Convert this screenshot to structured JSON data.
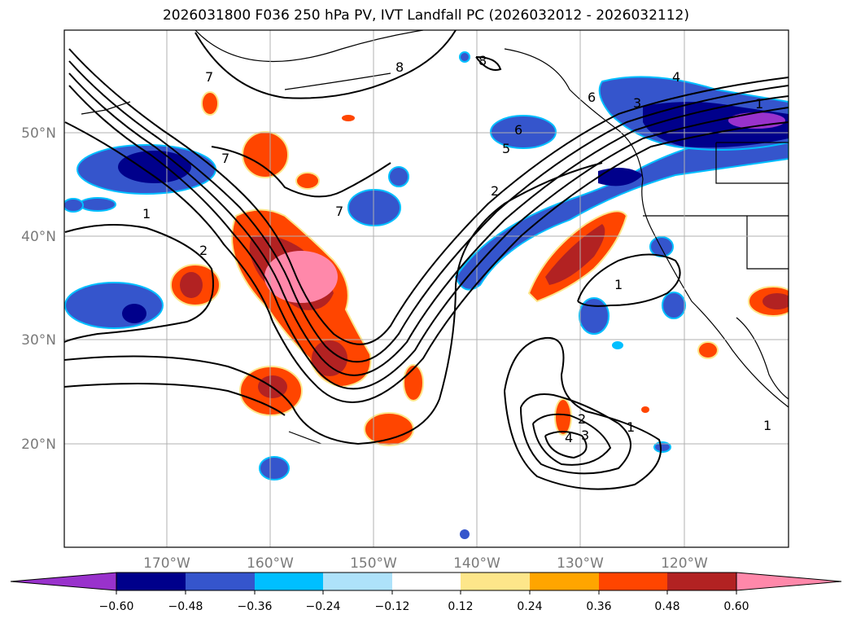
{
  "title": "2026031800 F036 250 hPa PV, IVT Landfall PC (2026032012 - 2026032112)",
  "lat_labels": [
    "50°N",
    "40°N",
    "30°N",
    "20°N"
  ],
  "lon_labels": [
    "170°W",
    "160°W",
    "150°W",
    "140°W",
    "130°W",
    "120°W"
  ],
  "contour_labels": [
    "8",
    "8",
    "7",
    "7",
    "7",
    "6",
    "5",
    "4",
    "3",
    "2",
    "2",
    "1",
    "1",
    "1",
    "1",
    "1",
    "2",
    "3",
    "4",
    "6"
  ],
  "colorbar": {
    "ticks": [
      "−0.60",
      "−0.48",
      "−0.36",
      "−0.24",
      "−0.12",
      "0.12",
      "0.24",
      "0.36",
      "0.48",
      "0.60"
    ],
    "colors": [
      "#9932cc",
      "#00008b",
      "#3555cc",
      "#00bfff",
      "#aee2fa",
      "#ffffff",
      "#fde68a",
      "#ffa500",
      "#ff4500",
      "#b22222",
      "#ff88aa"
    ]
  }
}
